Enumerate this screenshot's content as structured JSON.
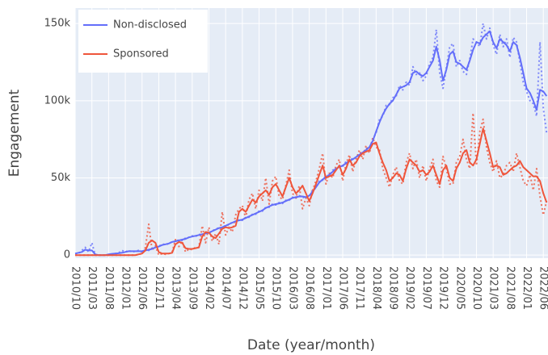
{
  "chart_data": {
    "type": "line",
    "xlabel": "Date (year/month)",
    "ylabel": "Engagement",
    "categories": [
      "2010/10",
      null,
      null,
      null,
      null,
      "2011/03",
      null,
      null,
      null,
      null,
      "2011/08",
      null,
      null,
      null,
      null,
      "2012/01",
      null,
      null,
      null,
      null,
      "2012/06",
      null,
      null,
      null,
      null,
      "2012/11",
      null,
      null,
      null,
      null,
      "2013/04",
      null,
      null,
      null,
      null,
      "2013/09",
      null,
      null,
      null,
      null,
      "2014/02",
      null,
      null,
      null,
      null,
      "2014/07",
      null,
      null,
      null,
      null,
      "2014/12",
      null,
      null,
      null,
      null,
      "2015/05",
      null,
      null,
      null,
      null,
      "2015/10",
      null,
      null,
      null,
      null,
      "2016/03",
      null,
      null,
      null,
      null,
      "2016/08",
      null,
      null,
      null,
      null,
      "2017/01",
      null,
      null,
      null,
      null,
      "2017/06",
      null,
      null,
      null,
      null,
      "2017/11",
      null,
      null,
      null,
      null,
      "2018/04",
      null,
      null,
      null,
      null,
      "2018/09",
      null,
      null,
      null,
      null,
      "2019/02",
      null,
      null,
      null,
      null,
      "2019/07",
      null,
      null,
      null,
      null,
      "2019/12",
      null,
      null,
      null,
      null,
      "2020/05",
      null,
      null,
      null,
      null,
      "2020/10",
      null,
      null,
      null,
      null,
      "2021/03",
      null,
      null,
      null,
      null,
      "2021/08",
      null,
      null,
      null,
      null,
      "2022/01",
      null,
      null,
      null,
      null,
      "2022/06",
      null
    ],
    "series": [
      {
        "color": "#636efa",
        "dash": "dot",
        "values": [
          1000,
          1000,
          3000,
          5000,
          2000,
          8000,
          0,
          0,
          0,
          0,
          0,
          500,
          1000,
          1500,
          3000,
          2000,
          3000,
          2000,
          2500,
          3000,
          2000,
          3500,
          3000,
          4500,
          5000,
          6000,
          6500,
          7500,
          7000,
          9000,
          8500,
          10000,
          9500,
          11000,
          11500,
          12500,
          12000,
          13500,
          13000,
          14500,
          14000,
          16000,
          16500,
          18000,
          17500,
          19500,
          19500,
          21500,
          21500,
          23000,
          22500,
          24500,
          24500,
          26500,
          26500,
          28500,
          28500,
          31000,
          31000,
          33000,
          32500,
          34000,
          33500,
          35500,
          35500,
          37500,
          37000,
          38500,
          37500,
          37000,
          38000,
          42000,
          43500,
          48000,
          48500,
          51500,
          51500,
          55000,
          55500,
          58000,
          57500,
          60500,
          60500,
          63000,
          63000,
          66000,
          66000,
          69000,
          69500,
          75000,
          79000,
          88000,
          90000,
          97000,
          97500,
          102000,
          103000,
          110000,
          107000,
          112000,
          110000,
          122000,
          117000,
          118000,
          113000,
          116000,
          124000,
          128000,
          146000,
          118000,
          108000,
          121000,
          135000,
          137000,
          122000,
          126000,
          119000,
          117000,
          127000,
          140000,
          138000,
          135000,
          150000,
          140000,
          147000,
          136000,
          130000,
          143000,
          135000,
          140000,
          128000,
          141000,
          138000,
          125000,
          112000,
          106000,
          100000,
          98000,
          90000,
          138000,
          95000,
          79000
        ]
      },
      {
        "color": "#ef553b",
        "dash": "dot",
        "values": [
          0,
          0,
          0,
          0,
          0,
          0,
          0,
          0,
          0,
          0,
          0,
          0,
          0,
          0,
          0,
          0,
          0,
          0,
          0,
          500,
          1000,
          5000,
          20000,
          3000,
          6000,
          0,
          1000,
          500,
          1000,
          2000,
          10000,
          5500,
          9000,
          2000,
          4000,
          3500,
          5000,
          5000,
          19000,
          8000,
          18000,
          9000,
          14000,
          7000,
          28000,
          13000,
          18000,
          15000,
          26000,
          30000,
          32000,
          24000,
          36000,
          40000,
          30000,
          42000,
          35000,
          50000,
          33000,
          48000,
          51000,
          38000,
          36000,
          45000,
          55000,
          40000,
          37000,
          45000,
          30000,
          37000,
          32000,
          42000,
          48000,
          56000,
          66000,
          46000,
          53000,
          50000,
          58000,
          62000,
          48000,
          59000,
          65000,
          54000,
          62000,
          68000,
          62000,
          71000,
          66000,
          76000,
          70000,
          68000,
          56000,
          50000,
          44000,
          52000,
          57000,
          48000,
          46000,
          60000,
          66000,
          56000,
          62000,
          50000,
          58000,
          48000,
          56000,
          62000,
          48000,
          44000,
          64000,
          56000,
          46000,
          46000,
          60000,
          64000,
          75000,
          62000,
          56000,
          92000,
          58000,
          80000,
          88000,
          70000,
          60000,
          54000,
          61000,
          50000,
          52000,
          58000,
          60000,
          54000,
          66000,
          57000,
          48000,
          45000,
          52000,
          42000,
          56000,
          38000,
          26000,
          35000
        ]
      },
      {
        "name": "Non-disclosed",
        "color": "#636efa",
        "dash": "solid",
        "values": [
          1000,
          1500,
          2000,
          3500,
          3000,
          3000,
          500,
          0,
          0,
          0,
          500,
          800,
          1000,
          1200,
          1500,
          2000,
          2500,
          2500,
          2500,
          2500,
          2500,
          3000,
          3500,
          4000,
          5000,
          5500,
          6500,
          7000,
          7500,
          8500,
          9000,
          9500,
          10000,
          10500,
          11500,
          12000,
          12500,
          13000,
          13500,
          14000,
          14500,
          15500,
          16500,
          17500,
          18000,
          19000,
          20000,
          21000,
          22000,
          22500,
          23000,
          24000,
          25000,
          26000,
          27000,
          28000,
          29000,
          30500,
          31500,
          32500,
          33000,
          33500,
          34000,
          35000,
          36000,
          37000,
          37500,
          38000,
          38000,
          37500,
          38500,
          41000,
          44000,
          47000,
          49000,
          50500,
          52000,
          54000,
          56000,
          57000,
          58000,
          59500,
          61000,
          62000,
          63500,
          65000,
          66500,
          68000,
          70000,
          74000,
          80000,
          86000,
          91000,
          95000,
          98000,
          100000,
          104000,
          108000,
          109000,
          110000,
          112000,
          118000,
          119000,
          117000,
          116000,
          118000,
          122000,
          126000,
          135000,
          126000,
          113000,
          120000,
          130000,
          132000,
          125000,
          124000,
          122000,
          120000,
          126000,
          133000,
          138000,
          137000,
          141000,
          143000,
          145000,
          138000,
          134000,
          140000,
          138000,
          136000,
          132000,
          138000,
          136000,
          128000,
          118000,
          108000,
          105000,
          100000,
          94000,
          107000,
          106000,
          103000
        ]
      },
      {
        "name": "Sponsored",
        "color": "#ef553b",
        "dash": "solid",
        "values": [
          0,
          0,
          0,
          0,
          0,
          0,
          0,
          0,
          0,
          0,
          0,
          0,
          0,
          0,
          0,
          0,
          0,
          0,
          0,
          500,
          1000,
          3000,
          8000,
          9500,
          8000,
          2000,
          1000,
          1000,
          1000,
          1500,
          7000,
          8500,
          8000,
          4500,
          4000,
          4000,
          4500,
          5000,
          12000,
          15000,
          14500,
          12000,
          11000,
          14000,
          17000,
          18000,
          17500,
          18000,
          19000,
          28000,
          30000,
          28000,
          32000,
          36000,
          34000,
          38000,
          40000,
          42000,
          39000,
          44000,
          46000,
          42000,
          38000,
          44000,
          50000,
          44000,
          40000,
          42000,
          45000,
          40000,
          35000,
          40000,
          46000,
          52000,
          58000,
          50000,
          51000,
          52000,
          55000,
          58000,
          52000,
          56000,
          62000,
          58000,
          60000,
          64000,
          66000,
          67000,
          68000,
          72000,
          73000,
          66000,
          60000,
          55000,
          48000,
          50000,
          53000,
          52000,
          48000,
          56000,
          62000,
          60000,
          58000,
          54000,
          55000,
          52000,
          54000,
          58000,
          52000,
          46000,
          55000,
          58000,
          50000,
          48000,
          56000,
          60000,
          66000,
          68000,
          60000,
          58000,
          62000,
          72000,
          82000,
          74000,
          66000,
          57000,
          58000,
          57000,
          52000,
          53000,
          55000,
          57000,
          58000,
          61000,
          57000,
          55000,
          53000,
          51000,
          51000,
          48000,
          40000,
          34000
        ]
      }
    ],
    "ylim": [
      -2000,
      160000
    ],
    "yticks": [
      0,
      {
        "value": 50000,
        "label": "50k"
      },
      {
        "value": 100000,
        "label": "100k"
      },
      {
        "value": 150000,
        "label": "150k"
      }
    ],
    "grid": true,
    "legend": "upper left"
  }
}
